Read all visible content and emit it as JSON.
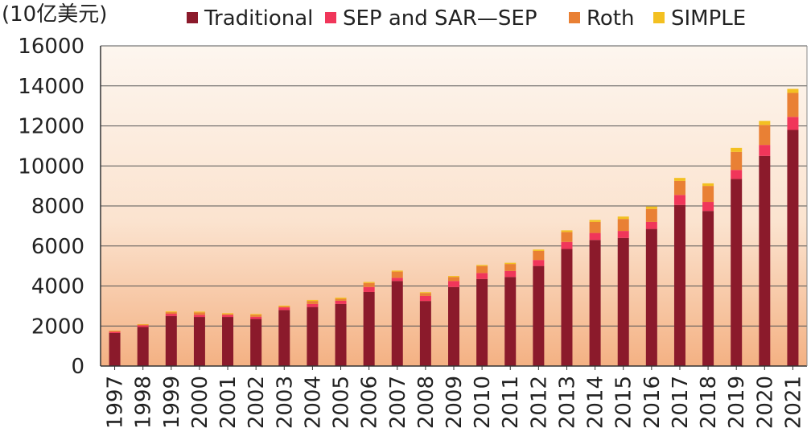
{
  "chart_data": {
    "type": "bar",
    "stacked": true,
    "unit_label": "(10亿美元)",
    "categories": [
      "1997",
      "1998",
      "1999",
      "2000",
      "2001",
      "2002",
      "2003",
      "2004",
      "2005",
      "2006",
      "2007",
      "2008",
      "2009",
      "2010",
      "2011",
      "2012",
      "2013",
      "2014",
      "2015",
      "2016",
      "2017",
      "2018",
      "2019",
      "2020",
      "2021"
    ],
    "series": [
      {
        "name": "Traditional",
        "color": "#8b1a2b",
        "values": [
          1650,
          1950,
          2500,
          2450,
          2450,
          2350,
          2800,
          2950,
          3100,
          3700,
          4250,
          3250,
          3950,
          4350,
          4450,
          5000,
          5850,
          6300,
          6400,
          6850,
          8050,
          7750,
          9350,
          10500,
          11800
        ]
      },
      {
        "name": "SEP and SAR—SEP",
        "color": "#f0365a",
        "values": [
          70,
          80,
          110,
          110,
          100,
          110,
          130,
          150,
          160,
          250,
          160,
          250,
          300,
          300,
          300,
          300,
          350,
          350,
          350,
          350,
          500,
          450,
          450,
          550,
          650
        ]
      },
      {
        "name": "Roth",
        "color": "#e98034",
        "values": [
          30,
          40,
          80,
          120,
          50,
          100,
          50,
          150,
          100,
          200,
          310,
          150,
          200,
          350,
          350,
          450,
          500,
          550,
          600,
          650,
          700,
          800,
          900,
          1000,
          1200
        ]
      },
      {
        "name": "SIMPLE",
        "color": "#f3c021",
        "values": [
          20,
          20,
          40,
          40,
          40,
          40,
          40,
          50,
          60,
          50,
          50,
          40,
          50,
          50,
          60,
          70,
          80,
          100,
          120,
          120,
          150,
          130,
          200,
          200,
          200
        ]
      }
    ],
    "ylim": [
      0,
      16000
    ],
    "yticks": [
      "0",
      "2000",
      "4000",
      "6000",
      "8000",
      "10000",
      "12000",
      "14000",
      "16000"
    ],
    "grid": true,
    "legend_position": "top",
    "background_gradient": [
      "#fdf6ef",
      "#f4b183"
    ]
  }
}
